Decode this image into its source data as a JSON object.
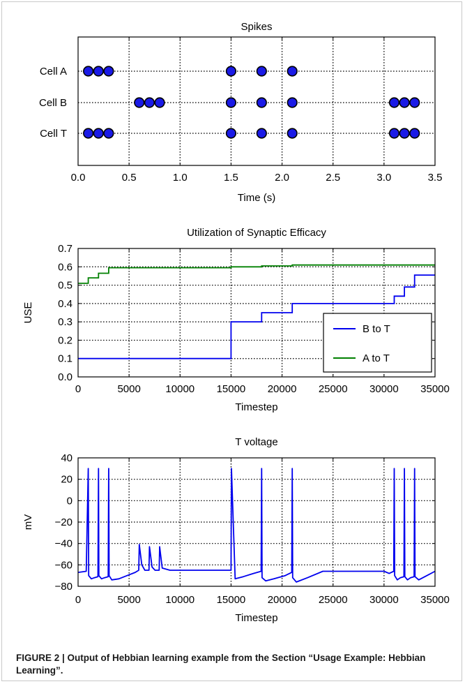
{
  "chart_data": [
    {
      "type": "scatter",
      "title": "Spikes",
      "xlabel": "Time (s)",
      "ylabel": "",
      "xlim": [
        0.0,
        3.5
      ],
      "xticks": [
        "0.0",
        "0.5",
        "1.0",
        "1.5",
        "2.0",
        "2.5",
        "3.0",
        "3.5"
      ],
      "grid": true,
      "series": [
        {
          "name": "Cell A",
          "x": [
            0.1,
            0.2,
            0.3,
            1.5,
            1.8,
            2.1
          ]
        },
        {
          "name": "Cell B",
          "x": [
            0.6,
            0.7,
            0.8,
            1.5,
            1.8,
            2.1,
            3.1,
            3.2,
            3.3
          ]
        },
        {
          "name": "Cell T",
          "x": [
            0.1,
            0.2,
            0.3,
            1.5,
            1.8,
            2.1,
            3.1,
            3.2,
            3.3
          ]
        }
      ],
      "colors": {
        "marker_fill": "#1a1ae6",
        "marker_edge": "#000000"
      }
    },
    {
      "type": "line",
      "title": "Utilization of Synaptic Efficacy",
      "xlabel": "Timestep",
      "ylabel": "USE",
      "xlim": [
        0,
        35000
      ],
      "ylim": [
        0.0,
        0.7
      ],
      "xticks": [
        "0",
        "5000",
        "10000",
        "15000",
        "20000",
        "25000",
        "30000",
        "35000"
      ],
      "yticks": [
        "0.0",
        "0.1",
        "0.2",
        "0.3",
        "0.4",
        "0.5",
        "0.6",
        "0.7"
      ],
      "grid": true,
      "legend_position": "lower-right",
      "series": [
        {
          "name": "B to T",
          "color": "#0000ee",
          "x": [
            0,
            15000,
            15000,
            18000,
            18000,
            21000,
            21000,
            31000,
            31000,
            32000,
            32000,
            33000,
            33000,
            35000
          ],
          "y": [
            0.1,
            0.1,
            0.3,
            0.3,
            0.35,
            0.35,
            0.4,
            0.4,
            0.44,
            0.44,
            0.49,
            0.49,
            0.555,
            0.555
          ]
        },
        {
          "name": "A to T",
          "color": "#008000",
          "x": [
            0,
            1000,
            1000,
            2000,
            2000,
            3000,
            3000,
            15000,
            15000,
            18000,
            18000,
            21000,
            21000,
            35000
          ],
          "y": [
            0.51,
            0.51,
            0.54,
            0.54,
            0.565,
            0.565,
            0.595,
            0.595,
            0.6,
            0.6,
            0.605,
            0.605,
            0.61,
            0.61
          ]
        }
      ]
    },
    {
      "type": "line",
      "title": "T voltage",
      "xlabel": "Timestep",
      "ylabel": "mV",
      "xlim": [
        0,
        35000
      ],
      "ylim": [
        -80,
        40
      ],
      "xticks": [
        "0",
        "5000",
        "10000",
        "15000",
        "20000",
        "25000",
        "30000",
        "35000"
      ],
      "yticks": [
        "−80",
        "−60",
        "−40",
        "−20",
        "0",
        "20",
        "40"
      ],
      "grid": true,
      "series": [
        {
          "color": "#0000ee",
          "x": [
            0,
            800,
            1000,
            1040,
            1300,
            1600,
            1950,
            2000,
            2040,
            2300,
            2600,
            2950,
            3000,
            3040,
            3300,
            4000,
            4800,
            5600,
            5950,
            6000,
            6250,
            6550,
            6950,
            7000,
            7250,
            7550,
            7950,
            8000,
            8250,
            9000,
            15000,
            15040,
            15400,
            16200,
            17200,
            17950,
            18000,
            18040,
            18400,
            19200,
            20300,
            20950,
            21000,
            21040,
            21400,
            22500,
            24000,
            30000,
            30500,
            30950,
            31000,
            31040,
            31300,
            31600,
            31950,
            32000,
            32040,
            32300,
            32600,
            32950,
            33000,
            33040,
            33400,
            34200,
            35000
          ],
          "y": [
            -67,
            -66,
            30,
            -70,
            -73,
            -72,
            -71,
            30,
            -70,
            -73,
            -72,
            -71,
            30,
            -70,
            -74,
            -73,
            -70,
            -67,
            -65,
            -41,
            -60,
            -65,
            -65,
            -43,
            -62,
            -65,
            -65,
            -43,
            -63,
            -65,
            -65,
            30,
            -73,
            -71,
            -68,
            -66,
            30,
            -72,
            -75,
            -73,
            -70,
            -67,
            30,
            -72,
            -76,
            -72,
            -66,
            -66,
            -68,
            -66,
            30,
            -70,
            -74,
            -72,
            -71,
            30,
            -71,
            -74,
            -72,
            -71,
            30,
            -71,
            -74,
            -70,
            -66
          ]
        }
      ]
    }
  ],
  "caption": {
    "bold": "FIGURE 2 | Output of Hebbian learning example from the Section “Usage Example: Hebbian Learning”."
  }
}
